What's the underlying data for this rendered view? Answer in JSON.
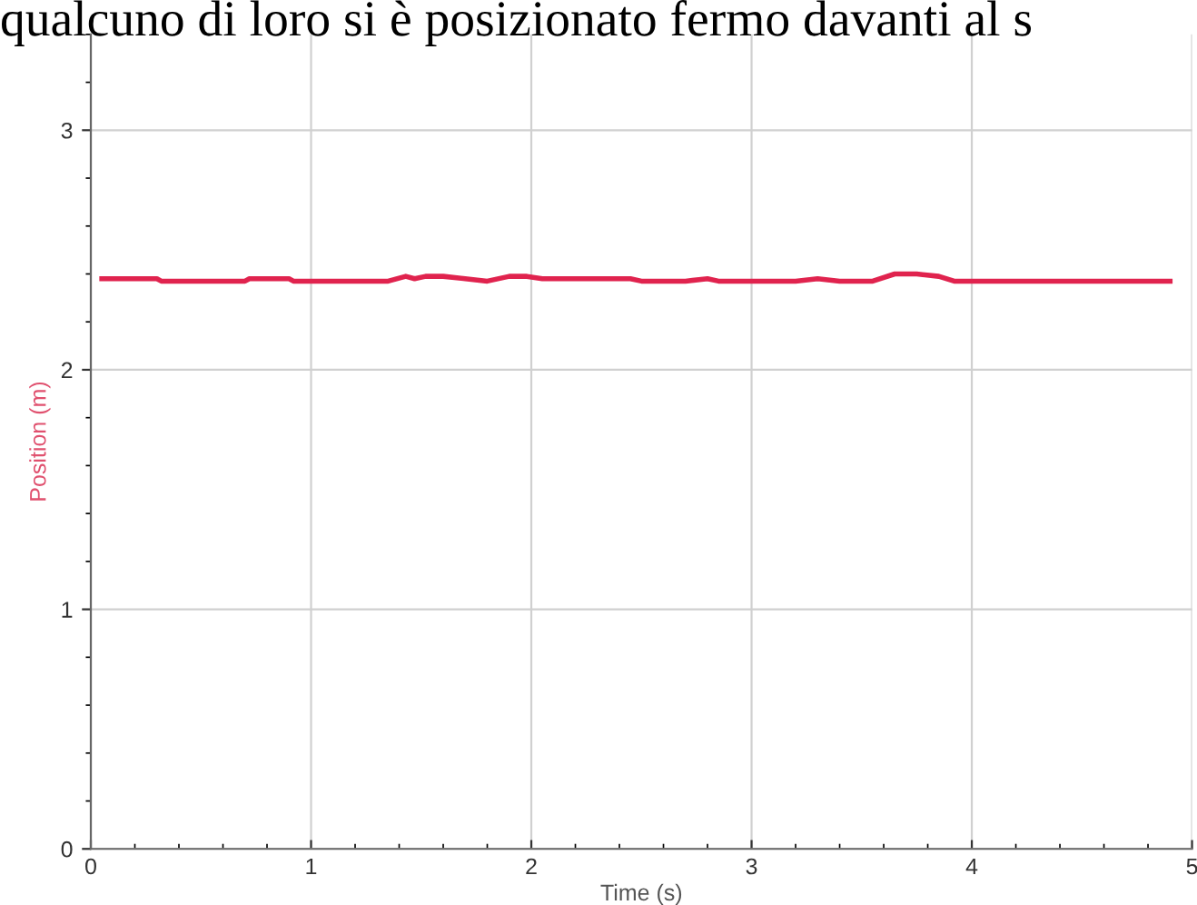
{
  "chart_data": {
    "type": "line",
    "title": "qualcuno di loro si è posizionato fermo davanti al s",
    "xlabel": "Time (s)",
    "ylabel": "Position (m)",
    "x": [
      0.05,
      0.3,
      0.32,
      0.7,
      0.72,
      0.9,
      0.92,
      1.35,
      1.43,
      1.47,
      1.52,
      1.6,
      1.7,
      1.8,
      1.9,
      1.98,
      2.05,
      2.2,
      2.25,
      2.3,
      2.45,
      2.5,
      2.7,
      2.8,
      2.85,
      3.2,
      3.3,
      3.4,
      3.55,
      3.65,
      3.75,
      3.85,
      3.92,
      4.9
    ],
    "series": [
      {
        "color": "#e0234e",
        "values": [
          2.38,
          2.38,
          2.37,
          2.37,
          2.38,
          2.38,
          2.37,
          2.37,
          2.39,
          2.38,
          2.39,
          2.39,
          2.38,
          2.37,
          2.39,
          2.39,
          2.38,
          2.38,
          2.38,
          2.38,
          2.38,
          2.37,
          2.37,
          2.38,
          2.37,
          2.37,
          2.38,
          2.37,
          2.37,
          2.4,
          2.4,
          2.39,
          2.37,
          2.37
        ]
      }
    ],
    "xlim": [
      0,
      5
    ],
    "ylim": [
      0,
      3.4
    ],
    "xticks": [
      0,
      1,
      2,
      3,
      4,
      5
    ],
    "yticks": [
      0,
      1,
      2,
      3
    ],
    "grid": true,
    "marker": "none",
    "line_style": "solid"
  }
}
